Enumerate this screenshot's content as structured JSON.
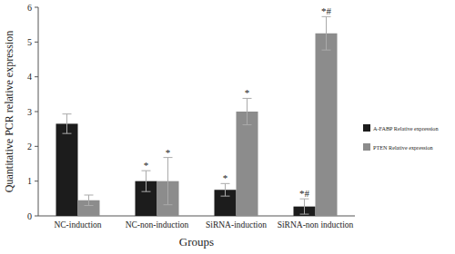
{
  "chart_data": {
    "type": "bar",
    "x_label": "Groups",
    "y_label": "Quantitative PCR relative expression",
    "categories": [
      "NC-induction",
      "NC-non-induction",
      "SiRNA-induction",
      "SiRNA-non induction"
    ],
    "series": [
      {
        "name": "A-FABP Relative expression",
        "color": "#1c1c1c",
        "values": [
          2.65,
          1.0,
          0.75,
          0.27
        ],
        "errors": [
          0.28,
          0.3,
          0.18,
          0.22
        ],
        "significance": [
          null,
          "*",
          "*",
          "*#"
        ]
      },
      {
        "name": "PTEN Relative expression",
        "color": "#8c8c8c",
        "values": [
          0.45,
          1.0,
          3.0,
          5.25
        ],
        "errors": [
          0.15,
          0.68,
          0.38,
          0.48
        ],
        "significance": [
          null,
          "*",
          "*",
          "*#"
        ]
      }
    ],
    "ylim": [
      0,
      6
    ],
    "yticks": [
      0,
      1,
      2,
      3,
      4,
      5,
      6
    ],
    "grid": false,
    "legend": "right"
  }
}
